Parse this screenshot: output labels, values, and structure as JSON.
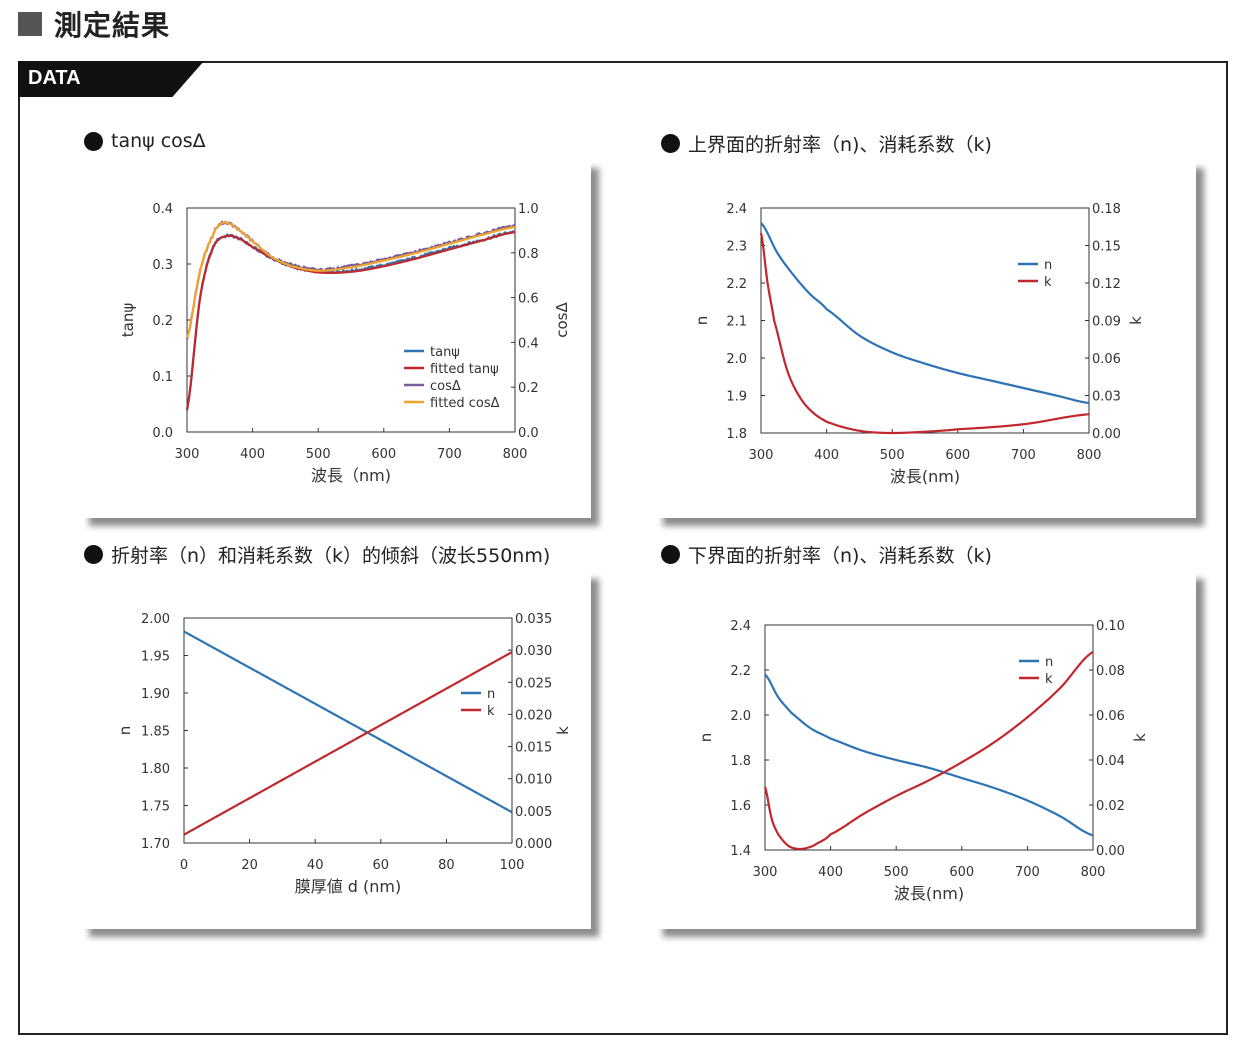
{
  "header": {
    "title": "測定結果"
  },
  "section": {
    "tab_label": "DATA"
  },
  "panels": [
    {
      "title": "tanψ cosΔ"
    },
    {
      "title": "上界面的折射率（n)、消耗系数（k)"
    },
    {
      "title": "折射率（n）和消耗系数（k）的倾斜（波长550nm)"
    },
    {
      "title": "下界面的折射率（n)、消耗系数（k)"
    }
  ],
  "colors": {
    "blue": "#2e74b5",
    "red": "#c0282d",
    "purple": "#7a5c9b",
    "orange": "#f2a52d"
  },
  "chart_data": [
    {
      "type": "line",
      "xlabel": "波長（nm)",
      "ylabel": "tanψ",
      "y2label": "cosΔ",
      "xlim": [
        300,
        800
      ],
      "ylim": [
        0,
        0.4
      ],
      "y2lim": [
        0,
        1.0
      ],
      "xticks": [
        "300",
        "400",
        "500",
        "600",
        "700",
        "800"
      ],
      "yticks": [
        "0.0",
        "0.1",
        "0.2",
        "0.3",
        "0.4"
      ],
      "y2ticks": [
        "0.0",
        "0.2",
        "0.4",
        "0.6",
        "0.8",
        "1.0"
      ],
      "legend_position": "center-right",
      "series": [
        {
          "name": "tanψ",
          "color": "blue",
          "axis": "left",
          "noisy": true,
          "x": [
            300,
            320,
            340,
            360,
            380,
            400,
            430,
            460,
            500,
            550,
            600,
            650,
            700,
            750,
            800
          ],
          "y": [
            0.04,
            0.24,
            0.33,
            0.35,
            0.345,
            0.33,
            0.31,
            0.295,
            0.287,
            0.288,
            0.298,
            0.312,
            0.328,
            0.343,
            0.358
          ]
        },
        {
          "name": "fitted tanψ",
          "color": "red",
          "axis": "left",
          "noisy": false,
          "x": [
            300,
            320,
            340,
            360,
            380,
            400,
            430,
            460,
            500,
            550,
            600,
            650,
            700,
            750,
            800
          ],
          "y": [
            0.04,
            0.24,
            0.33,
            0.35,
            0.345,
            0.33,
            0.31,
            0.295,
            0.285,
            0.286,
            0.296,
            0.31,
            0.326,
            0.342,
            0.357
          ]
        },
        {
          "name": "cosΔ",
          "color": "purple",
          "axis": "right",
          "noisy": true,
          "x": [
            300,
            320,
            340,
            350,
            360,
            380,
            400,
            430,
            460,
            500,
            550,
            600,
            650,
            700,
            750,
            800
          ],
          "y": [
            0.42,
            0.72,
            0.88,
            0.925,
            0.935,
            0.9,
            0.85,
            0.78,
            0.745,
            0.725,
            0.74,
            0.77,
            0.805,
            0.845,
            0.885,
            0.92
          ]
        },
        {
          "name": "fitted cosΔ",
          "color": "orange",
          "axis": "right",
          "noisy": false,
          "x": [
            300,
            320,
            340,
            350,
            360,
            380,
            400,
            430,
            460,
            500,
            550,
            600,
            650,
            700,
            750,
            800
          ],
          "y": [
            0.42,
            0.72,
            0.88,
            0.925,
            0.935,
            0.9,
            0.85,
            0.78,
            0.74,
            0.72,
            0.735,
            0.765,
            0.8,
            0.84,
            0.88,
            0.915
          ]
        }
      ]
    },
    {
      "type": "line",
      "xlabel": "波長(nm)",
      "ylabel": "n",
      "y2label": "k",
      "xlim": [
        300,
        800
      ],
      "ylim": [
        1.8,
        2.4
      ],
      "y2lim": [
        0,
        0.18
      ],
      "xticks": [
        "300",
        "400",
        "500",
        "600",
        "700",
        "800"
      ],
      "yticks": [
        "1.8",
        "1.9",
        "2.0",
        "2.1",
        "2.2",
        "2.3",
        "2.4"
      ],
      "y2ticks": [
        "0.00",
        "0.03",
        "0.06",
        "0.09",
        "0.12",
        "0.15",
        "0.18"
      ],
      "legend_position": "top-right",
      "series": [
        {
          "name": "n",
          "color": "blue",
          "axis": "left",
          "x": [
            300,
            325,
            350,
            375,
            400,
            450,
            500,
            550,
            600,
            650,
            700,
            750,
            800
          ],
          "y": [
            2.36,
            2.28,
            2.22,
            2.17,
            2.13,
            2.06,
            2.015,
            1.985,
            1.96,
            1.94,
            1.92,
            1.9,
            1.88
          ]
        },
        {
          "name": "k",
          "color": "red",
          "axis": "right",
          "x": [
            300,
            310,
            320,
            340,
            360,
            380,
            400,
            430,
            460,
            500,
            550,
            600,
            700,
            800
          ],
          "y": [
            0.16,
            0.12,
            0.09,
            0.05,
            0.028,
            0.016,
            0.009,
            0.004,
            0.001,
            0.0,
            0.001,
            0.003,
            0.007,
            0.015
          ]
        }
      ]
    },
    {
      "type": "line",
      "xlabel": "膜厚値 d (nm)",
      "ylabel": "n",
      "y2label": "k",
      "xlim": [
        0,
        100
      ],
      "ylim": [
        1.7,
        2.0
      ],
      "y2lim": [
        0,
        0.035
      ],
      "xticks": [
        "0",
        "20",
        "40",
        "60",
        "80",
        "100"
      ],
      "yticks": [
        "1.70",
        "1.75",
        "1.80",
        "1.85",
        "1.90",
        "1.95",
        "2.00"
      ],
      "y2ticks": [
        "0.000",
        "0.005",
        "0.010",
        "0.015",
        "0.020",
        "0.025",
        "0.030",
        "0.035"
      ],
      "legend_position": "center-right",
      "series": [
        {
          "name": "n",
          "color": "blue",
          "axis": "left",
          "x": [
            0,
            100
          ],
          "y": [
            1.982,
            1.741
          ]
        },
        {
          "name": "k",
          "color": "red",
          "axis": "right",
          "x": [
            0,
            100
          ],
          "y": [
            0.0013,
            0.0297
          ]
        }
      ]
    },
    {
      "type": "line",
      "xlabel": "波長(nm)",
      "ylabel": "n",
      "y2label": "k",
      "xlim": [
        300,
        800
      ],
      "ylim": [
        1.4,
        2.4
      ],
      "y2lim": [
        0,
        0.1
      ],
      "xticks": [
        "300",
        "400",
        "500",
        "600",
        "700",
        "800"
      ],
      "yticks": [
        "1.4",
        "1.6",
        "1.8",
        "2.0",
        "2.2",
        "2.4"
      ],
      "y2ticks": [
        "0.00",
        "0.02",
        "0.04",
        "0.06",
        "0.08",
        "0.10"
      ],
      "legend_position": "top-right",
      "series": [
        {
          "name": "n",
          "color": "blue",
          "axis": "left",
          "x": [
            300,
            320,
            340,
            370,
            400,
            450,
            500,
            550,
            600,
            650,
            700,
            750,
            800
          ],
          "y": [
            2.18,
            2.08,
            2.01,
            1.94,
            1.895,
            1.84,
            1.8,
            1.765,
            1.72,
            1.675,
            1.62,
            1.55,
            1.465
          ]
        },
        {
          "name": "k",
          "color": "red",
          "axis": "right",
          "x": [
            300,
            310,
            320,
            335,
            350,
            365,
            380,
            400,
            450,
            500,
            550,
            600,
            650,
            700,
            750,
            800
          ],
          "y": [
            0.028,
            0.014,
            0.007,
            0.002,
            0.0005,
            0.001,
            0.003,
            0.007,
            0.016,
            0.024,
            0.031,
            0.039,
            0.048,
            0.059,
            0.072,
            0.088
          ]
        }
      ]
    }
  ]
}
